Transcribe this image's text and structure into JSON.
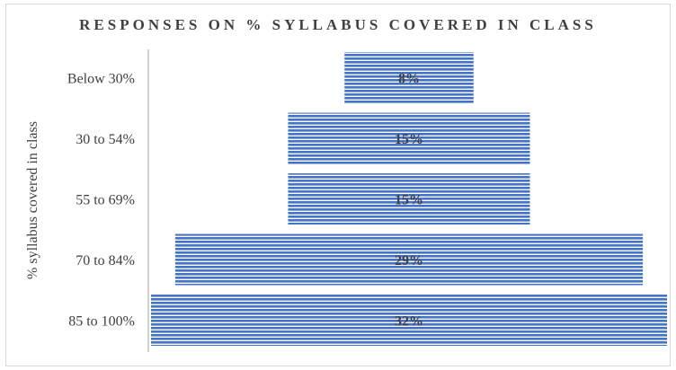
{
  "chart_data": {
    "type": "bar",
    "orientation": "horizontal-funnel",
    "title": "RESPONSES ON % SYLLABUS COVERED IN CLASS",
    "ylabel": "% syllabus covered in class",
    "categories": [
      "Below 30%",
      "30 to 54%",
      "55 to 69%",
      "70 to 84%",
      "85 to 100%"
    ],
    "values": [
      8,
      15,
      15,
      29,
      32
    ],
    "data_labels": [
      "8%",
      "15%",
      "15%",
      "29%",
      "32%"
    ],
    "colors": {
      "bar": "#4472c4",
      "stripe": "#ffffff",
      "text": "#404040",
      "axis": "#bfbfbf"
    }
  }
}
